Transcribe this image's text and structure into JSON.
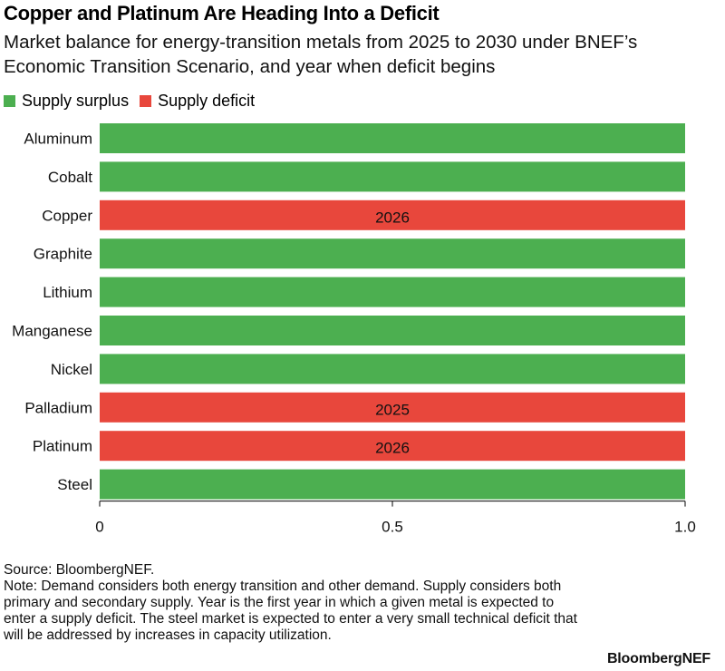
{
  "header": {
    "title": "Copper and Platinum Are Heading Into a Deficit",
    "subtitle": "Market balance for energy-transition metals from 2025 to 2030 under BNEF’s Economic Transition Scenario, and year when deficit begins"
  },
  "legend": {
    "surplus_label": "Supply surplus",
    "deficit_label": "Supply deficit"
  },
  "colors": {
    "surplus": "#4caf50",
    "deficit": "#e8473c",
    "axis": "#000000"
  },
  "chart_data": {
    "type": "bar",
    "orientation": "horizontal",
    "title": "Copper and Platinum Are Heading Into a Deficit",
    "xlim": [
      0,
      1.0
    ],
    "x_ticks": [
      "0",
      "0.5",
      "1.0"
    ],
    "grid": false,
    "legend_position": "top-left",
    "categories": [
      "Aluminum",
      "Cobalt",
      "Copper",
      "Graphite",
      "Lithium",
      "Manganese",
      "Nickel",
      "Palladium",
      "Platinum",
      "Steel"
    ],
    "values": [
      1,
      1,
      1,
      1,
      1,
      1,
      1,
      1,
      1,
      1
    ],
    "status": [
      "Supply surplus",
      "Supply surplus",
      "Supply deficit",
      "Supply surplus",
      "Supply surplus",
      "Supply surplus",
      "Supply surplus",
      "Supply deficit",
      "Supply deficit",
      "Supply surplus"
    ],
    "deficit_year": [
      "",
      "",
      "2026",
      "",
      "",
      "",
      "",
      "2025",
      "2026",
      ""
    ]
  },
  "footer": {
    "source": "Source: BloombergNEF.",
    "note": "Note: Demand considers both energy transition and other demand. Supply considers both primary and secondary supply. Year is the first year in which a given metal is expected to enter a supply deficit. The steel market is expected to enter a very small technical deficit that will be addressed by increases in capacity utilization.",
    "brand": "BloombergNEF"
  }
}
